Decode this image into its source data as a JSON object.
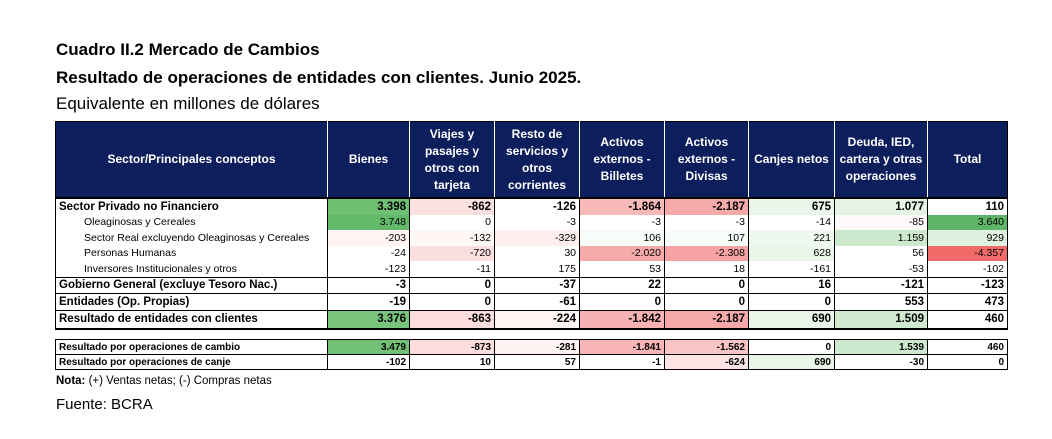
{
  "titles": {
    "line1": "Cuadro II.2 Mercado de Cambios",
    "line2": "Resultado de operaciones de entidades con clientes. Junio 2025.",
    "line3": "Equivalente en millones de dólares"
  },
  "headers": [
    "Sector/Principales conceptos",
    "Bienes",
    "Viajes y pasajes y otros con tarjeta",
    "Resto de servicios y otros corrientes",
    "Activos externos - Billetes",
    "Activos externos - Divisas",
    "Canjes netos",
    "Deuda, IED, cartera y otras operaciones",
    "Total"
  ],
  "rows": [
    {
      "label": "Sector Privado no Financiero",
      "values": [
        "3.398",
        "-862",
        "-126",
        "-1.864",
        "-2.187",
        "675",
        "1.077",
        "110"
      ],
      "bg": [
        "#6fbf73",
        "#fce1e1",
        "#ffffff",
        "#f8b9b9",
        "#f6a9a9",
        "#eaf6ea",
        "#e4f3e4",
        "#ffffff"
      ]
    },
    {
      "label": "Oleaginosas y Cereales",
      "values": [
        "3.748",
        "0",
        "-3",
        "-3",
        "-3",
        "-14",
        "-85",
        "3.640"
      ],
      "bg": [
        "#62b96a",
        "#ffffff",
        "#ffffff",
        "#ffffff",
        "#ffffff",
        "#ffffff",
        "#fffafa",
        "#5fb567"
      ]
    },
    {
      "label": "Sector Real excluyendo Oleaginosas y Cereales",
      "values": [
        "-203",
        "-132",
        "-329",
        "106",
        "107",
        "221",
        "1.159",
        "929"
      ],
      "bg": [
        "#fff3f3",
        "#fff6f6",
        "#ffeeee",
        "#f8fcf8",
        "#f8fcf8",
        "#eff8ef",
        "#cde9cd",
        "#e0f1e0"
      ]
    },
    {
      "label": "Personas Humanas",
      "values": [
        "-24",
        "-720",
        "30",
        "-2.020",
        "-2.308",
        "628",
        "56",
        "-4.357"
      ],
      "bg": [
        "#ffffff",
        "#fbdede",
        "#ffffff",
        "#f6aaaa",
        "#f5a3a3",
        "#ebf6eb",
        "#ffffff",
        "#f06a6a"
      ]
    },
    {
      "label": "Inversores Institucionales y otros",
      "values": [
        "-123",
        "-11",
        "175",
        "53",
        "18",
        "-161",
        "-53",
        "-102"
      ],
      "bg": [
        "#ffffff",
        "#ffffff",
        "#ffffff",
        "#ffffff",
        "#ffffff",
        "#ffffff",
        "#ffffff",
        "#ffffff"
      ]
    },
    {
      "label": "Gobierno General (excluye Tesoro Nac.)",
      "values": [
        "-3",
        "0",
        "-37",
        "22",
        "0",
        "16",
        "-121",
        "-123"
      ],
      "bg": [
        "#ffffff",
        "#ffffff",
        "#ffffff",
        "#ffffff",
        "#ffffff",
        "#ffffff",
        "#ffffff",
        "#ffffff"
      ]
    },
    {
      "label": "Entidades (Op. Propias)",
      "values": [
        "-19",
        "0",
        "-61",
        "0",
        "0",
        "0",
        "553",
        "473"
      ],
      "bg": [
        "#ffffff",
        "#ffffff",
        "#ffffff",
        "#ffffff",
        "#ffffff",
        "#ffffff",
        "#ffffff",
        "#ffffff"
      ]
    },
    {
      "label": "Resultado de entidades con clientes",
      "values": [
        "3.376",
        "-863",
        "-224",
        "-1.842",
        "-2.187",
        "690",
        "1.509",
        "460"
      ],
      "bg": [
        "#79c47c",
        "#fcdcdc",
        "#fff4f4",
        "#f7b3b3",
        "#f6a9a9",
        "#e9f5e9",
        "#cfeacf",
        "#ffffff"
      ]
    }
  ],
  "subrows": [
    {
      "label": "Resultado por operaciones de cambio",
      "values": [
        "3.479",
        "-873",
        "-281",
        "-1.841",
        "-1.562",
        "0",
        "1.539",
        "460"
      ],
      "bg": [
        "#71c075",
        "#fcdcdc",
        "#fff2f2",
        "#f7b5b5",
        "#f9c4c4",
        "#ffffff",
        "#cde9cd",
        "#ffffff"
      ]
    },
    {
      "label": "Resultado por operaciones de canje",
      "values": [
        "-102",
        "10",
        "57",
        "-1",
        "-624",
        "690",
        "-30",
        "0"
      ],
      "bg": [
        "#ffffff",
        "#ffffff",
        "#ffffff",
        "#ffffff",
        "#fde4e4",
        "#e9f5e9",
        "#ffffff",
        "#ffffff"
      ]
    }
  ],
  "note": {
    "label": "Nota:",
    "text": "(+) Ventas netas; (-) Compras netas"
  },
  "source": "Fuente: BCRA"
}
